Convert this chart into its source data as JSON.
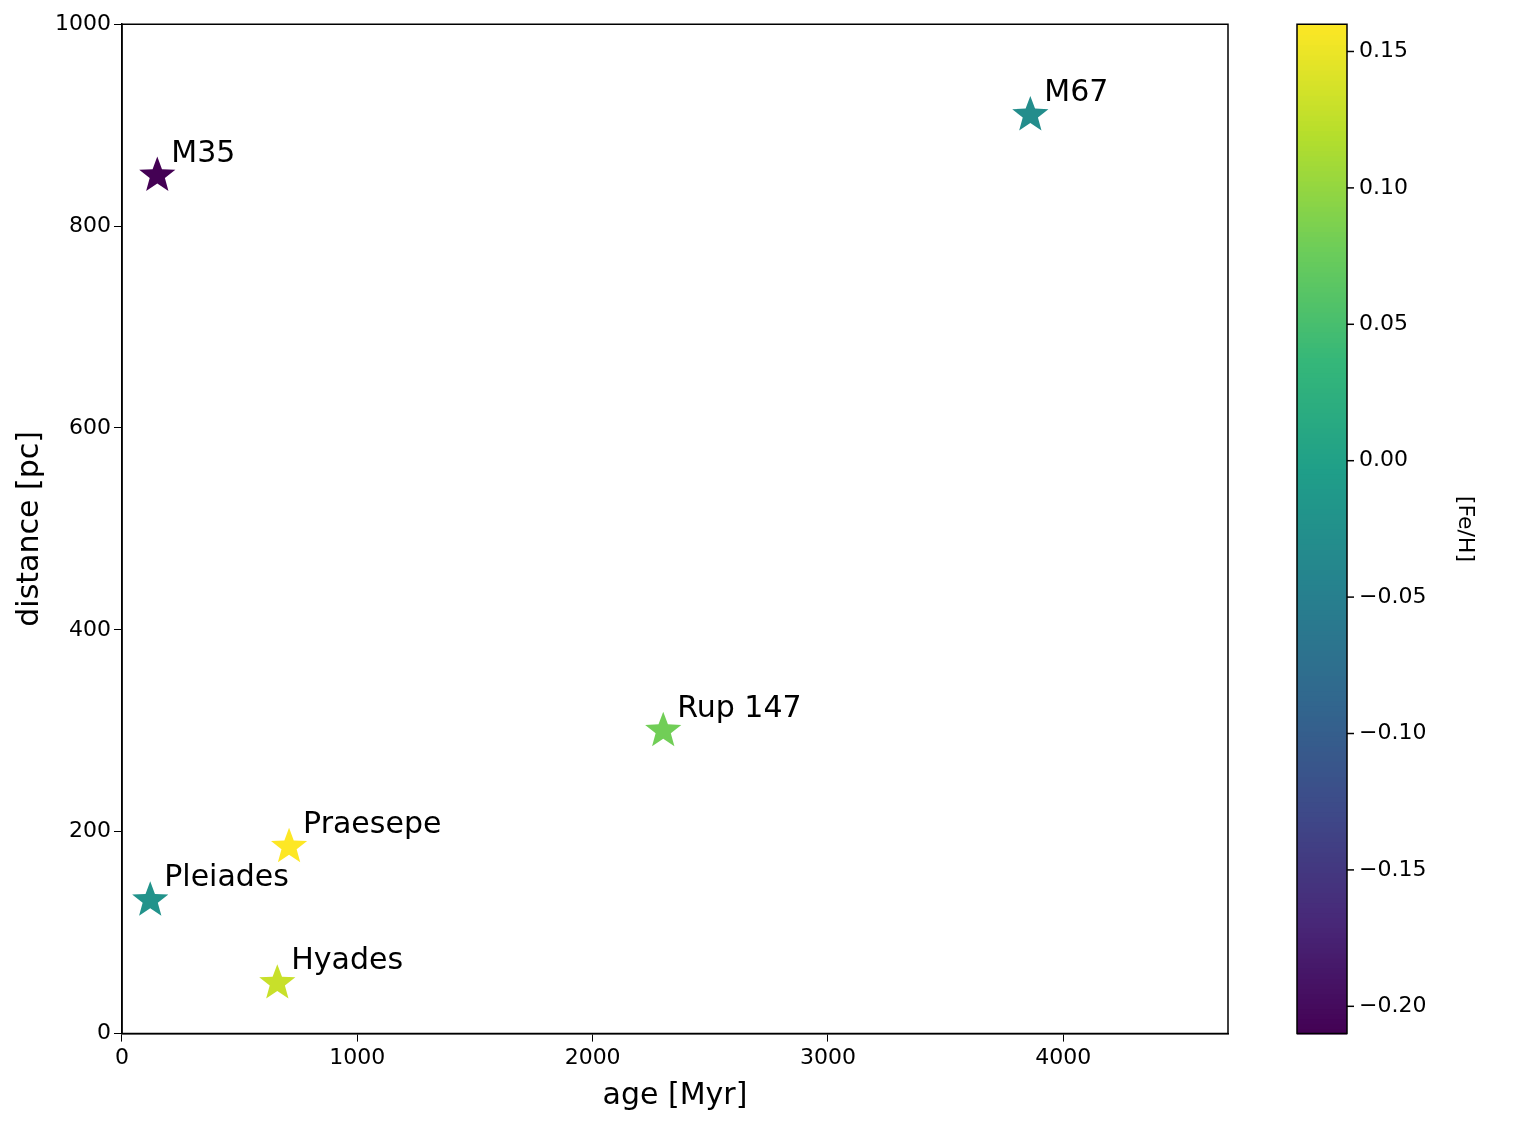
{
  "chart_data": {
    "type": "scatter",
    "xlabel": "age [Myr]",
    "ylabel": "distance [pc]",
    "clabel": "[Fe/H]",
    "x": [
      150,
      3860,
      2300,
      710,
      120,
      660
    ],
    "values": [
      850,
      910,
      300,
      185,
      132,
      50
    ],
    "cvalues": [
      -0.21,
      -0.03,
      0.08,
      0.16,
      -0.02,
      0.13
    ],
    "annotations": [
      {
        "text": "M35",
        "x": 150,
        "y": 850
      },
      {
        "text": "M67",
        "x": 3860,
        "y": 910
      },
      {
        "text": "Rup 147",
        "x": 2300,
        "y": 300
      },
      {
        "text": "Praesepe",
        "x": 710,
        "y": 185
      },
      {
        "text": "Pleiades",
        "x": 120,
        "y": 132
      },
      {
        "text": "Hyades",
        "x": 660,
        "y": 50
      }
    ],
    "xlim": [
      0,
      4700
    ],
    "xticks": [
      0,
      1000,
      2000,
      3000,
      4000
    ],
    "ylim": [
      0,
      1000
    ],
    "yticks": [
      0,
      200,
      400,
      600,
      800,
      1000
    ],
    "clim": [
      -0.21,
      0.16
    ],
    "cticks": [
      {
        "value": -0.2,
        "label": "−0.20"
      },
      {
        "value": -0.15,
        "label": "−0.15"
      },
      {
        "value": -0.1,
        "label": "−0.10"
      },
      {
        "value": -0.05,
        "label": "−0.05"
      },
      {
        "value": 0,
        "label": "0.00"
      },
      {
        "value": 0.05,
        "label": "0.05"
      },
      {
        "value": 0.1,
        "label": "0.10"
      },
      {
        "value": 0.15,
        "label": "0.15"
      }
    ],
    "grid": false,
    "legend": false,
    "marker": "star"
  }
}
